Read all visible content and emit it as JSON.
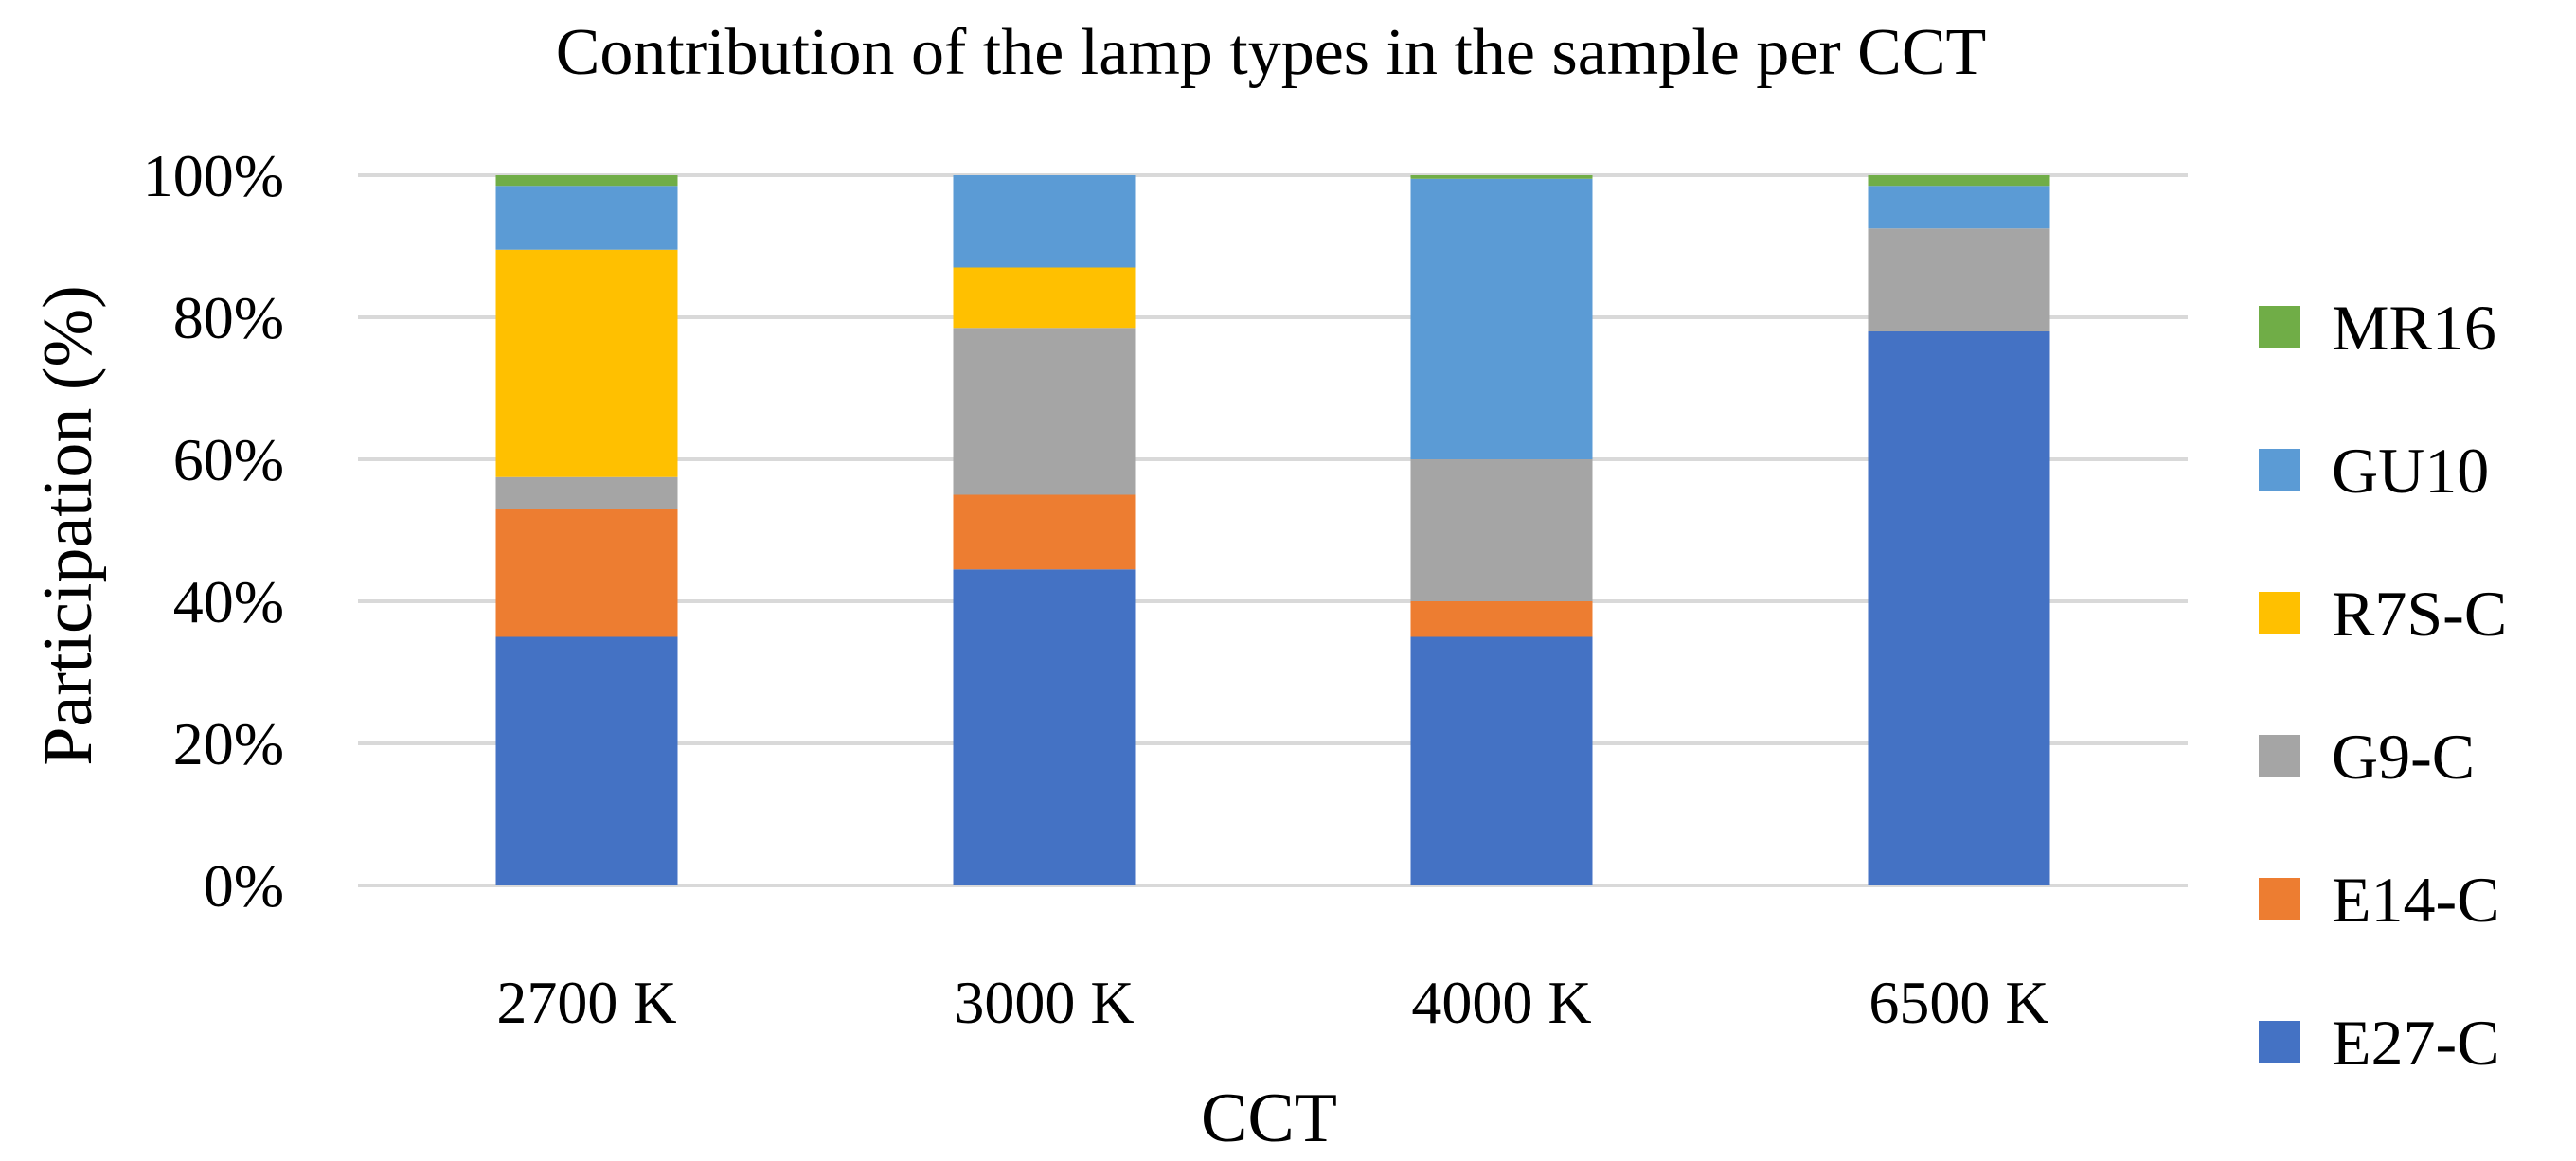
{
  "chart_data": {
    "type": "bar",
    "stacked": true,
    "percent_stacked": true,
    "title": "Contribution of the lamp types in the sample per CCT",
    "xlabel": "CCT",
    "ylabel": "Participation (%)",
    "ylim": [
      0,
      100
    ],
    "y_ticks": [
      "0%",
      "20%",
      "40%",
      "60%",
      "80%",
      "100%"
    ],
    "grid": "horizontal",
    "legend_position": "right",
    "categories": [
      "2700 K",
      "3000 K",
      "4000 K",
      "6500 K"
    ],
    "series": [
      {
        "name": "E27-C",
        "color": "#4472c4",
        "values": [
          35,
          44.5,
          35,
          78
        ]
      },
      {
        "name": "E14-C",
        "color": "#ed7d31",
        "values": [
          18,
          10.5,
          5,
          0
        ]
      },
      {
        "name": "G9-C",
        "color": "#a5a5a5",
        "values": [
          4.5,
          23.5,
          20,
          14.5
        ]
      },
      {
        "name": "R7S-C",
        "color": "#ffc000",
        "values": [
          32,
          8.5,
          0,
          0
        ]
      },
      {
        "name": "GU10",
        "color": "#5b9bd5",
        "values": [
          9,
          13,
          39.5,
          6
        ]
      },
      {
        "name": "MR16",
        "color": "#70ad47",
        "values": [
          1.5,
          0,
          0.5,
          1.5
        ]
      }
    ]
  }
}
